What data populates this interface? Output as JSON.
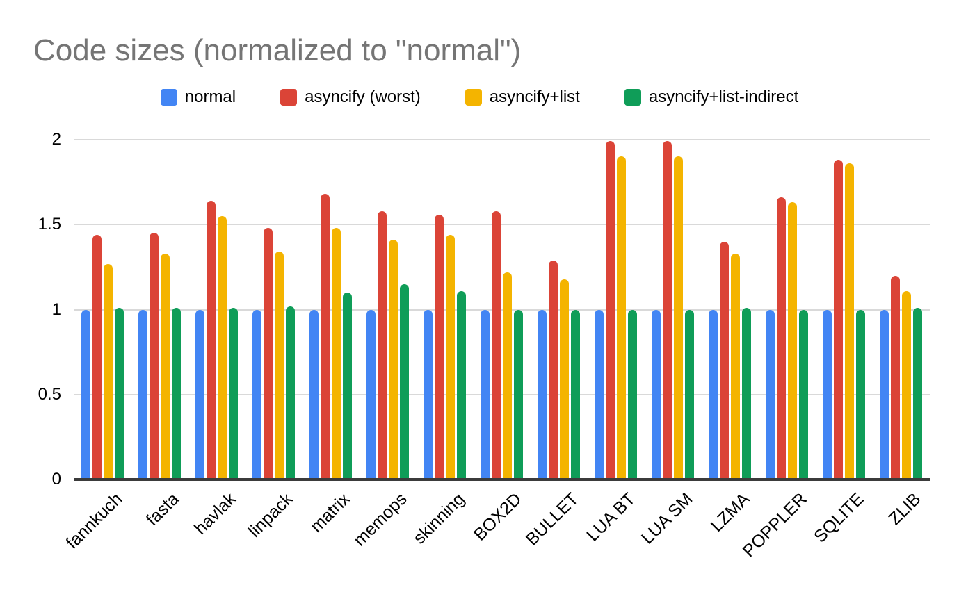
{
  "chart_data": {
    "type": "bar",
    "title": "Code sizes (normalized to \"normal\")",
    "title_color": "#757575",
    "grid_color": "#d9d9d9",
    "axis_color": "#3b3b3b",
    "legend_position": "top",
    "grid": true,
    "x_label_rotation": -45,
    "ylim": [
      0,
      2
    ],
    "y_ticks": [
      0,
      0.5,
      1,
      1.5,
      2
    ],
    "categories": [
      "fannkuch",
      "fasta",
      "havlak",
      "linpack",
      "matrix",
      "memops",
      "skinning",
      "BOX2D",
      "BULLET",
      "LUA BT",
      "LUA SM",
      "LZMA",
      "POPPLER",
      "SQLITE",
      "ZLIB"
    ],
    "series": [
      {
        "name": "normal",
        "color": "#4285F4",
        "values": [
          1.0,
          1.0,
          1.0,
          1.0,
          1.0,
          1.0,
          1.0,
          1.0,
          1.0,
          1.0,
          1.0,
          1.0,
          1.0,
          1.0,
          1.0
        ]
      },
      {
        "name": "asyncify (worst)",
        "color": "#DB4437",
        "values": [
          1.44,
          1.45,
          1.64,
          1.48,
          1.68,
          1.58,
          1.56,
          1.58,
          1.29,
          1.99,
          1.99,
          1.4,
          1.66,
          1.88,
          1.2
        ]
      },
      {
        "name": "asyncify+list",
        "color": "#F4B400",
        "values": [
          1.27,
          1.33,
          1.55,
          1.34,
          1.48,
          1.41,
          1.44,
          1.22,
          1.18,
          1.9,
          1.9,
          1.33,
          1.63,
          1.86,
          1.11
        ]
      },
      {
        "name": "asyncify+list-indirect",
        "color": "#0F9D58",
        "values": [
          1.01,
          1.01,
          1.01,
          1.02,
          1.1,
          1.15,
          1.11,
          1.0,
          1.0,
          1.0,
          1.0,
          1.01,
          1.0,
          1.0,
          1.01
        ]
      }
    ]
  }
}
